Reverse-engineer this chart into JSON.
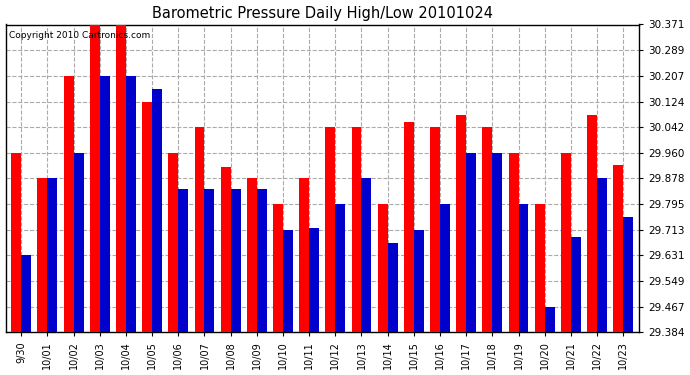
{
  "title": "Barometric Pressure Daily High/Low 20101024",
  "copyright": "Copyright 2010 Cartronics.com",
  "dates": [
    "9/30",
    "10/01",
    "10/02",
    "10/03",
    "10/04",
    "10/05",
    "10/06",
    "10/07",
    "10/08",
    "10/09",
    "10/10",
    "10/11",
    "10/12",
    "10/13",
    "10/14",
    "10/15",
    "10/16",
    "10/17",
    "10/18",
    "10/19",
    "10/20",
    "10/21",
    "10/22",
    "10/23"
  ],
  "highs": [
    29.96,
    29.878,
    30.207,
    30.371,
    30.371,
    30.124,
    29.96,
    30.042,
    29.913,
    29.878,
    29.795,
    29.878,
    30.042,
    30.042,
    29.795,
    30.06,
    30.042,
    30.082,
    30.042,
    29.96,
    29.795,
    29.96,
    30.082,
    29.92
  ],
  "lows": [
    29.631,
    29.878,
    29.96,
    30.207,
    30.207,
    30.165,
    29.843,
    29.843,
    29.843,
    29.843,
    29.713,
    29.72,
    29.795,
    29.878,
    29.672,
    29.713,
    29.795,
    29.96,
    29.96,
    29.795,
    29.467,
    29.69,
    29.878,
    29.754
  ],
  "high_color": "#ff0000",
  "low_color": "#0000cc",
  "bg_color": "#ffffff",
  "grid_color": "#aaaaaa",
  "ymin": 29.384,
  "ymax": 30.371,
  "yticks": [
    29.384,
    29.467,
    29.549,
    29.631,
    29.713,
    29.795,
    29.878,
    29.96,
    30.042,
    30.124,
    30.207,
    30.289,
    30.371
  ]
}
